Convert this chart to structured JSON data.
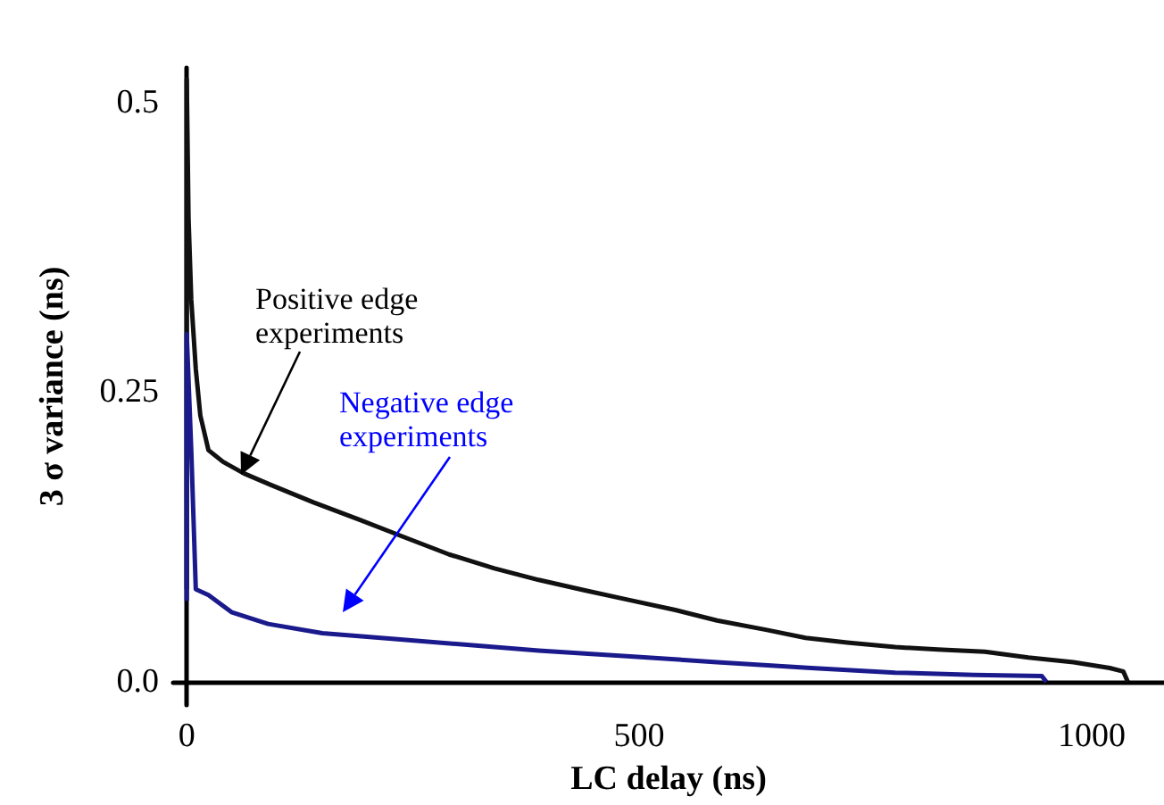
{
  "chart_data": {
    "type": "line",
    "xlabel": "LC delay (ns)",
    "ylabel": "3 σ variance (ns)",
    "xlim": [
      -15,
      1080
    ],
    "xticks": [
      0,
      500,
      1000
    ],
    "ylim": [
      -0.02,
      0.53
    ],
    "yticks": [
      {
        "value": 0,
        "label": "0.0"
      },
      0.25,
      0.5
    ],
    "grid": false,
    "series": [
      {
        "color": "#111111",
        "x": [
          0,
          0,
          2,
          5,
          10,
          15,
          24,
          40,
          63,
          93,
          140,
          191,
          240,
          290,
          340,
          389,
          440,
          487,
          540,
          586,
          640,
          684,
          730,
          783,
          830,
          882,
          930,
          980,
          1020,
          1035,
          1040
        ],
        "values": [
          0.08,
          0.52,
          0.4,
          0.33,
          0.27,
          0.23,
          0.2,
          0.19,
          0.18,
          0.17,
          0.155,
          0.14,
          0.125,
          0.11,
          0.098,
          0.088,
          0.079,
          0.071,
          0.062,
          0.053,
          0.045,
          0.038,
          0.034,
          0.03,
          0.028,
          0.026,
          0.021,
          0.017,
          0.012,
          0.009,
          0.0
        ]
      },
      {
        "color": "#1a1a8c",
        "x": [
          0,
          0,
          5,
          10,
          24,
          50,
          90,
          150,
          230,
          310,
          389,
          490,
          586,
          690,
          783,
          870,
          945,
          950
        ],
        "values": [
          0.07,
          0.3,
          0.2,
          0.08,
          0.075,
          0.06,
          0.05,
          0.042,
          0.037,
          0.032,
          0.027,
          0.022,
          0.017,
          0.012,
          0.008,
          0.006,
          0.005,
          0.0
        ]
      }
    ],
    "annotations": [
      "Positive edge\nexperiments",
      "Negative edge\nexperiments"
    ]
  }
}
